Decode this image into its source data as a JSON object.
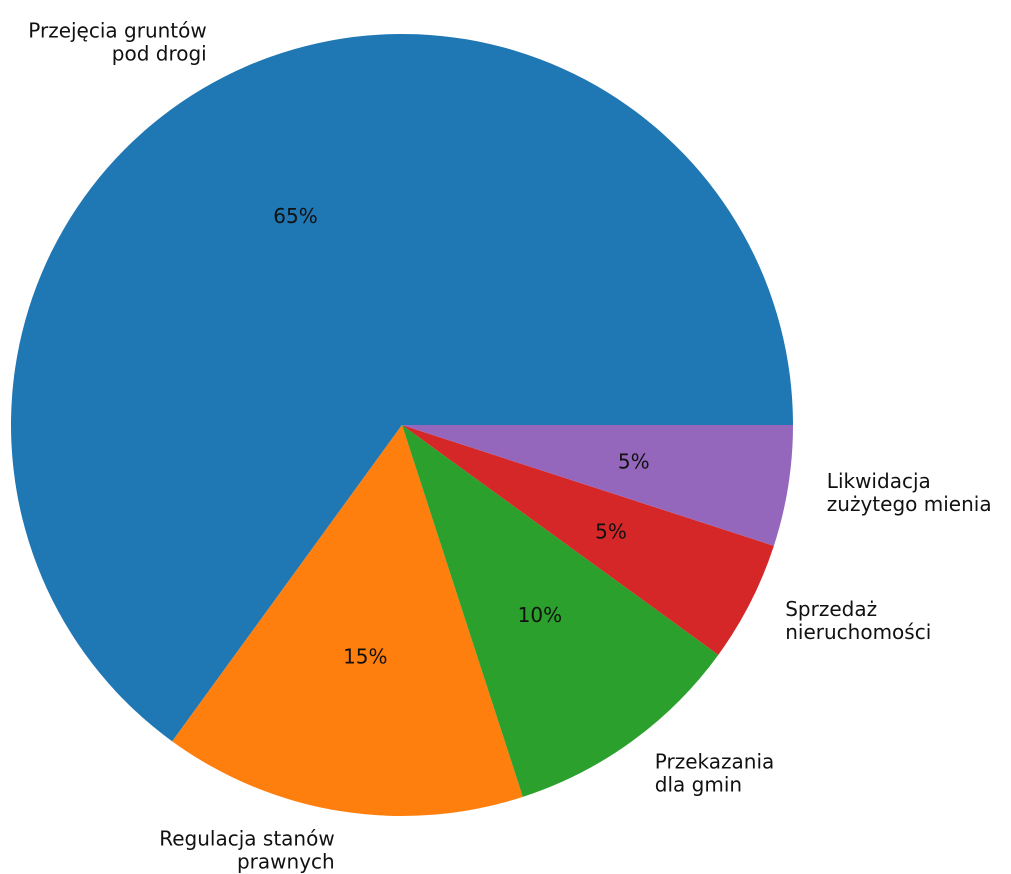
{
  "chart_data": {
    "type": "pie",
    "title": "",
    "start_angle_deg": 0,
    "direction": "counterclockwise",
    "slices": [
      {
        "label": [
          "Przejęcia gruntów",
          "pod drogi"
        ],
        "value": 65,
        "pct_label": "65%",
        "color": "#1f77b4"
      },
      {
        "label": [
          "Regulacja stanów",
          "prawnych"
        ],
        "value": 15,
        "pct_label": "15%",
        "color": "#ff7f0e"
      },
      {
        "label": [
          "Przekazania",
          "dla gmin"
        ],
        "value": 10,
        "pct_label": "10%",
        "color": "#2ca02c"
      },
      {
        "label": [
          "Sprzedaż",
          "nieruchomości"
        ],
        "value": 5,
        "pct_label": "5%",
        "color": "#d62728"
      },
      {
        "label": [
          "Likwidacja",
          "zużytego mienia"
        ],
        "value": 5,
        "pct_label": "5%",
        "color": "#9467bd"
      }
    ]
  }
}
